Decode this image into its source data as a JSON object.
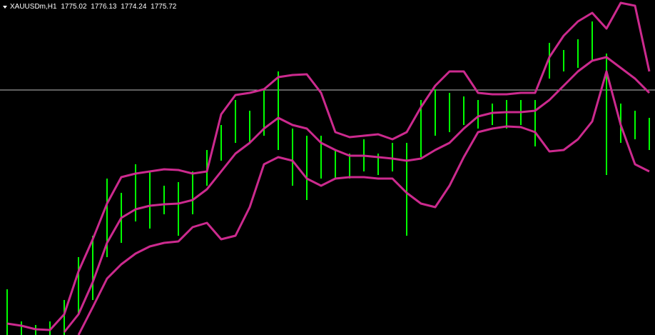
{
  "chart_data": {
    "type": "range",
    "title": "XAUUSDm,H1",
    "ohlc": [
      1775.02,
      1776.13,
      1774.24,
      1775.72
    ],
    "x": [
      0,
      1,
      2,
      3,
      4,
      5,
      6,
      7,
      8,
      9,
      10,
      11,
      12,
      13,
      14,
      15,
      16,
      17,
      18,
      19,
      20,
      21,
      22,
      23,
      24,
      25,
      26,
      27,
      28,
      29,
      30,
      31,
      32,
      33,
      34,
      35,
      36,
      37,
      38,
      39,
      40,
      41,
      42,
      43,
      44,
      45
    ],
    "xlim": [
      -0.5,
      45.4
    ],
    "ylim": [
      1762.55,
      1786
    ],
    "color": "#00ff00",
    "high": [
      1765.75,
      1763.5,
      1763.25,
      1763.5,
      1765,
      1768,
      1769.5,
      1773.5,
      1772.5,
      1774.5,
      1774,
      1773,
      1773.25,
      1774,
      1775.5,
      1777.25,
      1779,
      1778.25,
      1779.75,
      1781,
      1777,
      1776.5,
      1776.5,
      1775.5,
      1775.25,
      1776.25,
      1775.25,
      1776,
      1776,
      1779,
      1779.75,
      1779.5,
      1779.25,
      1779,
      1778.75,
      1779,
      1779,
      1779,
      1783,
      1782.5,
      1783.25,
      1784.5,
      1782.25,
      1778.75,
      1778.25,
      1777.75
    ],
    "low": [
      1762.55,
      1762.55,
      1762.55,
      1762.55,
      1762.55,
      1764,
      1765,
      1768,
      1769,
      1770.5,
      1770,
      1771,
      1769.5,
      1771,
      1773,
      1774.75,
      1776,
      1776,
      1776.5,
      1775.5,
      1773,
      1772,
      1773.5,
      1773.5,
      1773.5,
      1774,
      1773.75,
      1774,
      1769.5,
      1775,
      1776.5,
      1776.75,
      1777.25,
      1777,
      1777.25,
      1777,
      1777.25,
      1775.75,
      1780.5,
      1781,
      1781.25,
      1781.75,
      1773.75,
      1776,
      1776.25,
      1775.5
    ],
    "series": [
      {
        "color": "#cc2a8e",
        "values": [
          1763.35,
          1763.2,
          1762.95,
          1762.9,
          1764,
          1767,
          1769.25,
          1771.75,
          1773.6,
          1773.85,
          1774,
          1774.15,
          1774.1,
          1773.85,
          1774,
          1778,
          1779.35,
          1779.5,
          1779.75,
          1780.6,
          1780.75,
          1780.8,
          1779.5,
          1776.75,
          1776.4,
          1776.5,
          1776.6,
          1776.25,
          1776.75,
          1778.5,
          1780,
          1781,
          1781,
          1779.5,
          1779.4,
          1779.4,
          1779.5,
          1779.5,
          1782,
          1783.5,
          1784.5,
          1785.1,
          1784,
          1785.8,
          1785.6,
          1781
        ]
      },
      {
        "color": "#cc2a8e",
        "values": [
          null,
          null,
          null,
          null,
          1762.75,
          1764,
          1766.25,
          1769,
          1770.75,
          1771.35,
          1771.6,
          1771.7,
          1771.75,
          1772,
          1772.75,
          1774,
          1775.25,
          1776,
          1777,
          1777.75,
          1777.25,
          1777,
          1776,
          1775.5,
          1775.1,
          1775.1,
          1775,
          1774.9,
          1774.75,
          1774.9,
          1775.5,
          1776,
          1777,
          1777.85,
          1778.1,
          1778.15,
          1778.15,
          1778.25,
          1779,
          1780,
          1781,
          1781.75,
          1782,
          1781.25,
          1780.5,
          1779.5
        ]
      },
      {
        "color": "#cc2a8e",
        "values": [
          null,
          null,
          null,
          null,
          null,
          1762.55,
          1764.5,
          1766.5,
          1767.5,
          1768.25,
          1768.75,
          1769,
          1769.1,
          1770.1,
          1770.4,
          1769.25,
          1769.5,
          1771.5,
          1774.5,
          1775,
          1774.75,
          1773.5,
          1773,
          1773.5,
          1773.6,
          1773.6,
          1773.5,
          1773.5,
          1772.5,
          1771.75,
          1771.5,
          1773,
          1775,
          1776.75,
          1777,
          1777.15,
          1777.1,
          1776.75,
          1775.4,
          1775.5,
          1776.25,
          1777.5,
          1781,
          1777.25,
          1774.5,
          1774
        ]
      }
    ],
    "hline": 1779.7,
    "hline_color": "#c0c0c0"
  }
}
